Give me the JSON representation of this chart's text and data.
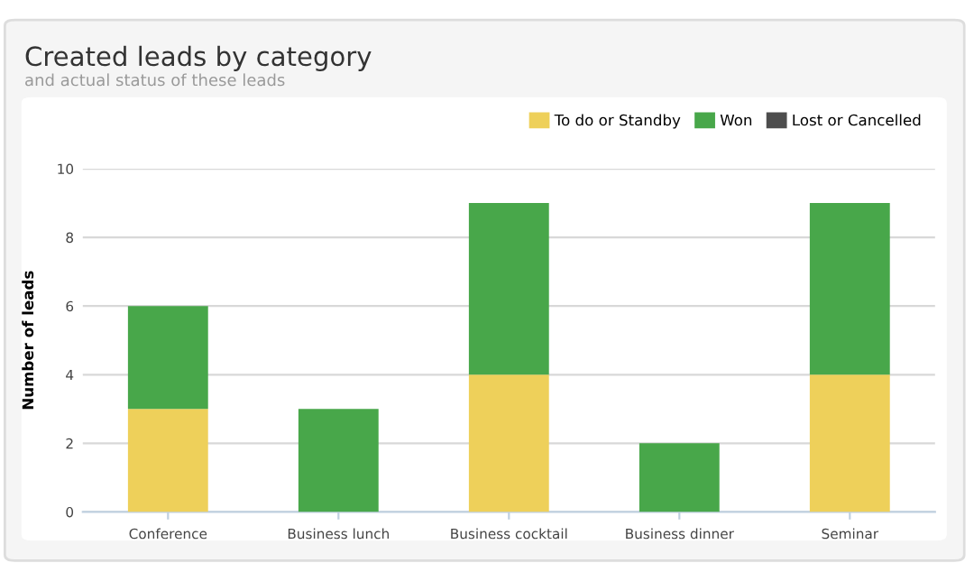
{
  "chart_data": {
    "type": "bar",
    "title": "Created leads by category",
    "subtitle": "and actual status of these leads",
    "ylabel": "Number of leads",
    "categories": [
      "Conference",
      "Business lunch",
      "Business cocktail",
      "Business dinner",
      "Seminar"
    ],
    "stacked": true,
    "series": [
      {
        "name": "To do or Standby",
        "color": "#eed05a",
        "values": [
          3,
          0,
          4,
          0,
          4
        ]
      },
      {
        "name": "Won",
        "color": "#48a74a",
        "values": [
          3,
          3,
          5,
          2,
          5
        ]
      },
      {
        "name": "Lost or Cancelled",
        "color": "#4d4d4d",
        "values": [
          0,
          0,
          0,
          0,
          0
        ]
      }
    ],
    "ylim": [
      0,
      10
    ],
    "yticks": [
      0,
      2,
      4,
      6,
      8,
      10
    ],
    "grid": "y",
    "legend": "top right"
  }
}
